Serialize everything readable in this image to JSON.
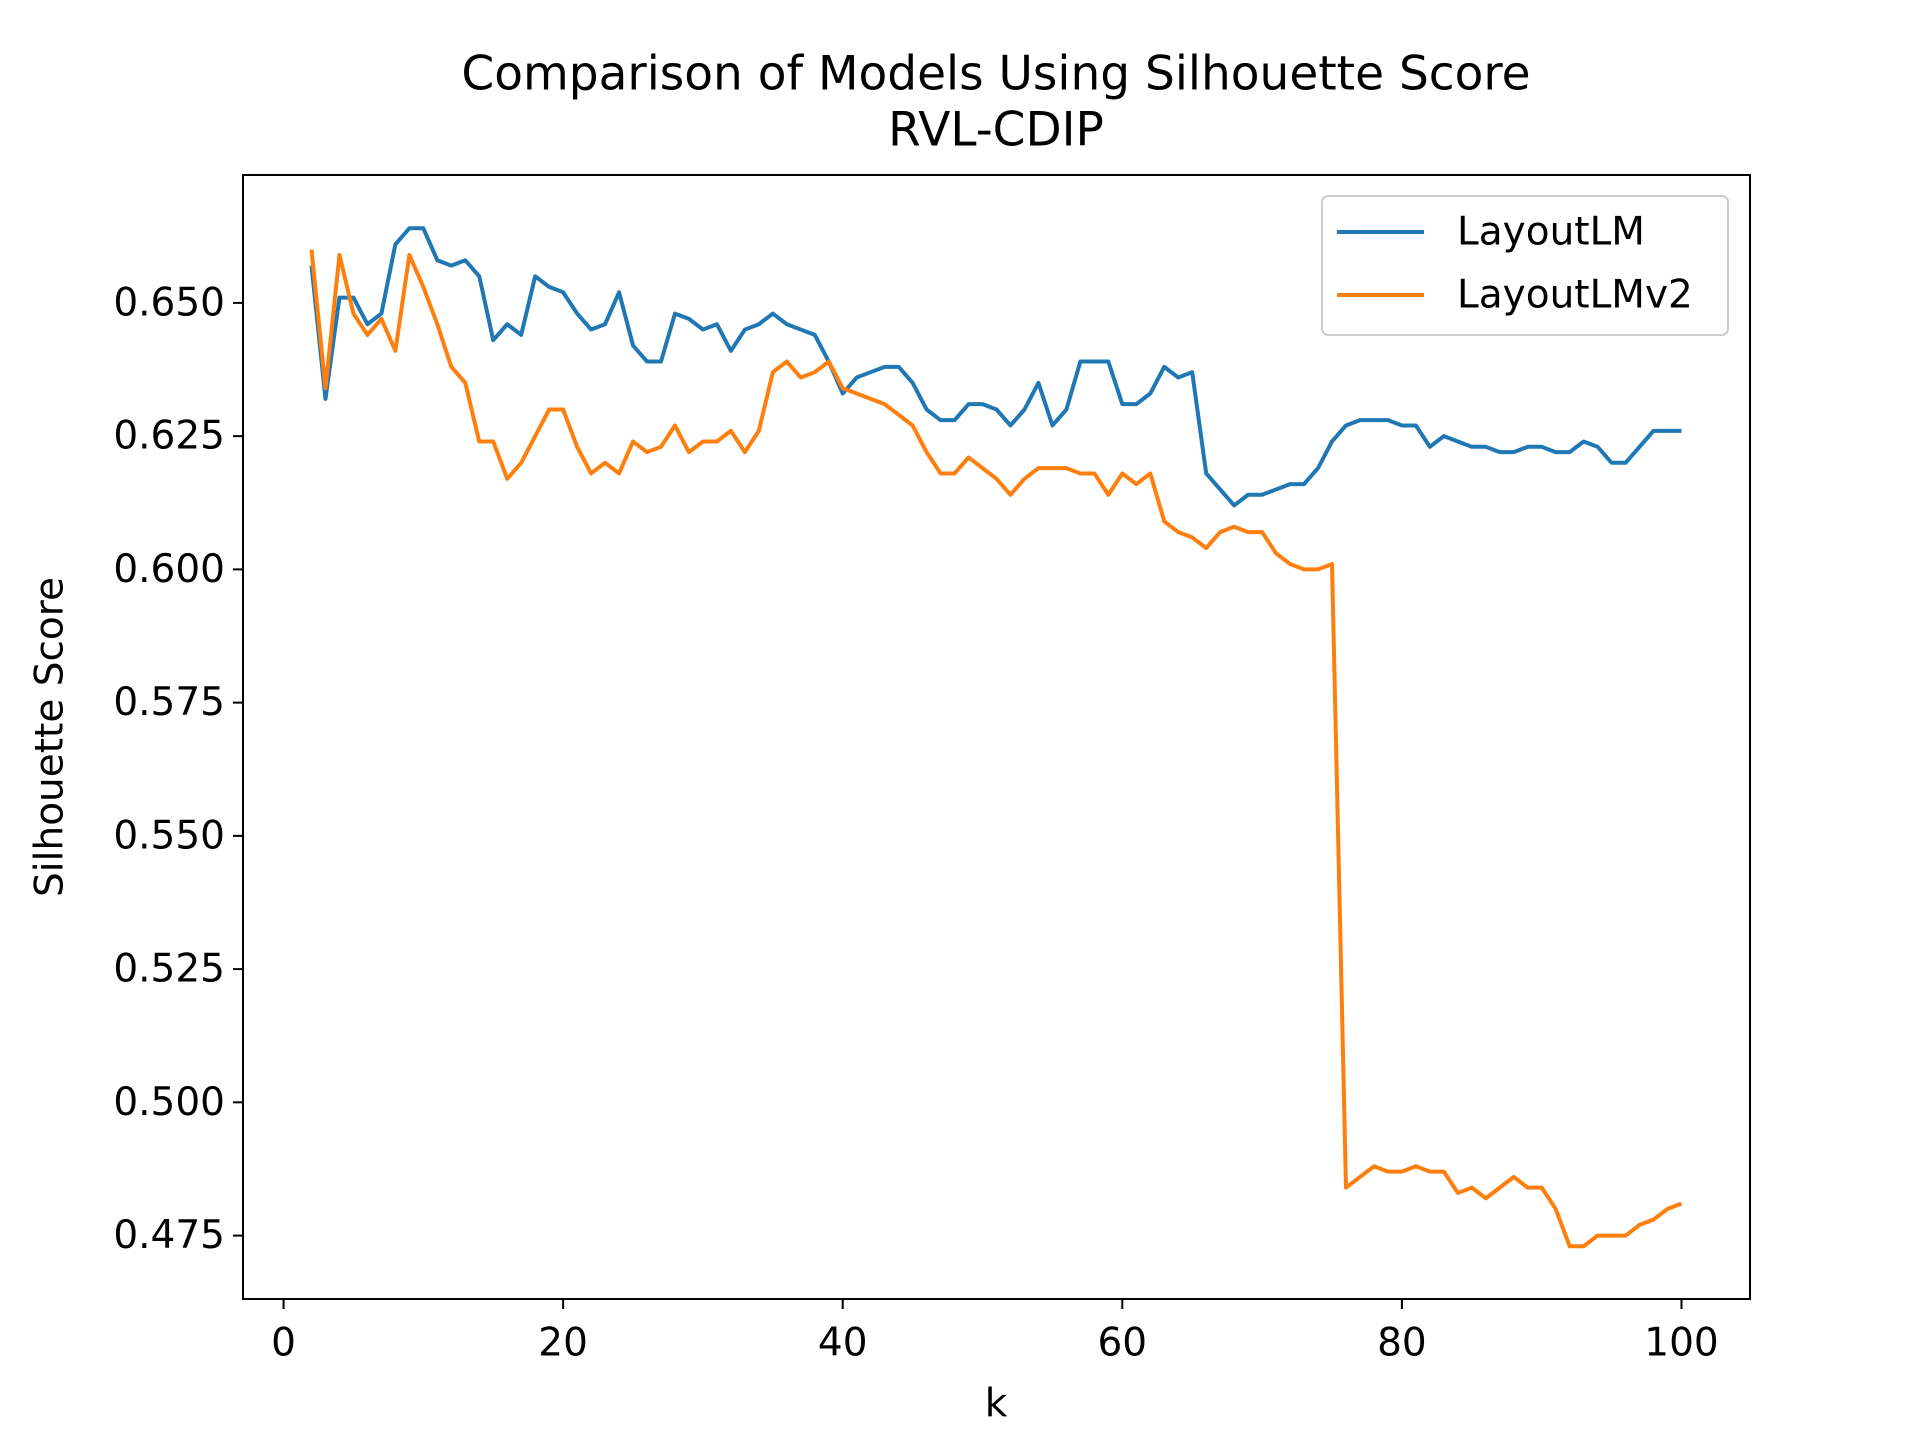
{
  "chart_data": {
    "type": "line",
    "title": "Comparison of Models Using Silhouette Score",
    "subtitle": "RVL-CDIP",
    "x_label": "k",
    "y_label": "Silhouette Score",
    "x": [
      2,
      3,
      4,
      5,
      6,
      7,
      8,
      9,
      10,
      11,
      12,
      13,
      14,
      15,
      16,
      17,
      18,
      19,
      20,
      21,
      22,
      23,
      24,
      25,
      26,
      27,
      28,
      29,
      30,
      31,
      32,
      33,
      34,
      35,
      36,
      37,
      38,
      39,
      40,
      41,
      42,
      43,
      44,
      45,
      46,
      47,
      48,
      49,
      50,
      51,
      52,
      53,
      54,
      55,
      56,
      57,
      58,
      59,
      60,
      61,
      62,
      63,
      64,
      65,
      66,
      67,
      68,
      69,
      70,
      71,
      72,
      73,
      74,
      75,
      76,
      77,
      78,
      79,
      80,
      81,
      82,
      83,
      84,
      85,
      86,
      87,
      88,
      89,
      90,
      91,
      92,
      93,
      94,
      95,
      96,
      97,
      98,
      99,
      100
    ],
    "series": [
      {
        "name": "LayoutLM",
        "color": "#1f77b4",
        "values": [
          0.657,
          0.632,
          0.651,
          0.651,
          0.646,
          0.648,
          0.661,
          0.664,
          0.664,
          0.658,
          0.657,
          0.658,
          0.655,
          0.643,
          0.646,
          0.644,
          0.655,
          0.653,
          0.652,
          0.648,
          0.645,
          0.646,
          0.652,
          0.642,
          0.639,
          0.639,
          0.648,
          0.647,
          0.645,
          0.646,
          0.641,
          0.645,
          0.646,
          0.648,
          0.646,
          0.645,
          0.644,
          0.639,
          0.633,
          0.636,
          0.637,
          0.638,
          0.638,
          0.635,
          0.63,
          0.628,
          0.628,
          0.631,
          0.631,
          0.63,
          0.627,
          0.63,
          0.635,
          0.627,
          0.63,
          0.639,
          0.639,
          0.639,
          0.631,
          0.631,
          0.633,
          0.638,
          0.636,
          0.637,
          0.618,
          0.615,
          0.612,
          0.614,
          0.614,
          0.615,
          0.616,
          0.616,
          0.619,
          0.624,
          0.627,
          0.628,
          0.628,
          0.628,
          0.627,
          0.627,
          0.623,
          0.625,
          0.624,
          0.623,
          0.623,
          0.622,
          0.622,
          0.623,
          0.623,
          0.622,
          0.622,
          0.624,
          0.623,
          0.62,
          0.62,
          0.623,
          0.626,
          0.626,
          0.626
        ]
      },
      {
        "name": "LayoutLMv2",
        "color": "#ff7f0e",
        "values": [
          0.66,
          0.634,
          0.659,
          0.648,
          0.644,
          0.647,
          0.641,
          0.659,
          0.653,
          0.646,
          0.638,
          0.635,
          0.624,
          0.624,
          0.617,
          0.62,
          0.625,
          0.63,
          0.63,
          0.623,
          0.618,
          0.62,
          0.618,
          0.624,
          0.622,
          0.623,
          0.627,
          0.622,
          0.624,
          0.624,
          0.626,
          0.622,
          0.626,
          0.637,
          0.639,
          0.636,
          0.637,
          0.639,
          0.634,
          0.633,
          0.632,
          0.631,
          0.629,
          0.627,
          0.622,
          0.618,
          0.618,
          0.621,
          0.619,
          0.617,
          0.614,
          0.617,
          0.619,
          0.619,
          0.619,
          0.618,
          0.618,
          0.614,
          0.618,
          0.616,
          0.618,
          0.609,
          0.607,
          0.606,
          0.604,
          0.607,
          0.608,
          0.607,
          0.607,
          0.603,
          0.601,
          0.6,
          0.6,
          0.601,
          0.484,
          0.486,
          0.488,
          0.487,
          0.487,
          0.488,
          0.487,
          0.487,
          0.483,
          0.484,
          0.482,
          0.484,
          0.486,
          0.484,
          0.484,
          0.48,
          0.473,
          0.473,
          0.475,
          0.475,
          0.475,
          0.477,
          0.478,
          0.48,
          0.481
        ]
      }
    ],
    "xlim": [
      -2.9,
      104.9
    ],
    "ylim": [
      0.4631,
      0.674
    ],
    "xticks": [
      0,
      20,
      40,
      60,
      80,
      100
    ],
    "yticks": [
      0.475,
      {
        "value": 0.5,
        "label": "0.500"
      },
      0.525,
      {
        "value": 0.55,
        "label": "0.550"
      },
      0.575,
      {
        "value": 0.6,
        "label": "0.600"
      },
      0.625,
      {
        "value": 0.65,
        "label": "0.650"
      }
    ],
    "legend": "upper right",
    "grid": false
  }
}
